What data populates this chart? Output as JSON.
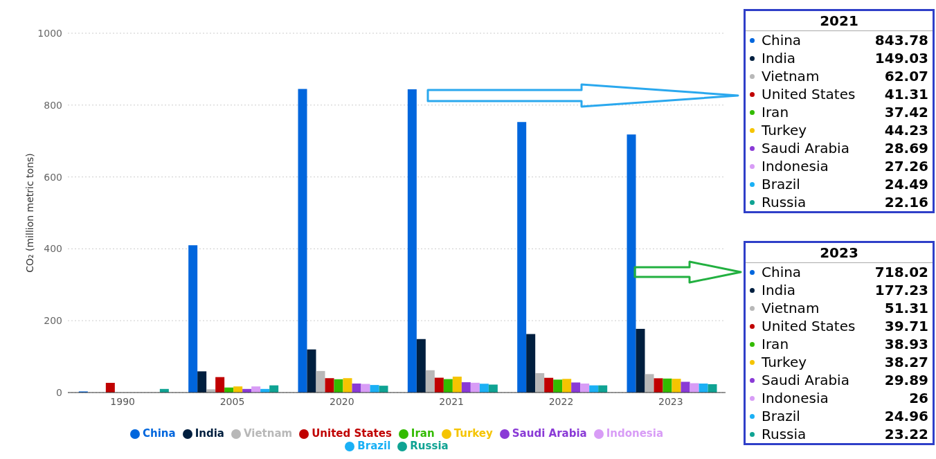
{
  "chart_data": {
    "type": "bar",
    "ylabel": "CO₂ (million metric tons)",
    "categories": [
      "1990",
      "2005",
      "2020",
      "2021",
      "2022",
      "2023"
    ],
    "ylim": [
      0,
      1000
    ],
    "yticks": [
      0,
      200,
      400,
      600,
      800,
      1000
    ],
    "grid": "y",
    "legend": "bottom",
    "series": [
      {
        "name": "China",
        "color": "#0066dd",
        "values": [
          3,
          410,
          845,
          843.78,
          753,
          718.02
        ]
      },
      {
        "name": "India",
        "color": "#001f3f",
        "values": [
          null,
          59,
          120,
          149.03,
          163,
          177.23
        ]
      },
      {
        "name": "Vietnam",
        "color": "#b8b8b8",
        "values": [
          0,
          9,
          60,
          62.07,
          54,
          51.31
        ]
      },
      {
        "name": "United States",
        "color": "#c00000",
        "values": [
          27,
          43,
          40,
          41.31,
          41,
          39.71
        ]
      },
      {
        "name": "Iran",
        "color": "#33bb00",
        "values": [
          0,
          14,
          37,
          37.42,
          36,
          38.93
        ]
      },
      {
        "name": "Turkey",
        "color": "#f5c400",
        "values": [
          0,
          17,
          40,
          44.23,
          38,
          38.27
        ]
      },
      {
        "name": "Saudi Arabia",
        "color": "#8a3ad6",
        "values": [
          0,
          10,
          25,
          28.69,
          28,
          29.89
        ]
      },
      {
        "name": "Indonesia",
        "color": "#d89cf6",
        "values": [
          0,
          17,
          24,
          27.26,
          25,
          26
        ]
      },
      {
        "name": "Brazil",
        "color": "#1ab0f5",
        "values": [
          0,
          10,
          21,
          24.49,
          20,
          24.96
        ]
      },
      {
        "name": "Russia",
        "color": "#0fa393",
        "values": [
          10,
          20,
          19,
          22.16,
          20,
          23.22
        ]
      }
    ],
    "annotations": [
      "2021",
      "China 843.78",
      "India 149.03",
      "Vietnam 62.07",
      "United States 41.31",
      "Iran 37.42",
      "Turkey 44.23",
      "Saudi Arabia 28.69",
      "Indonesia 27.26",
      "Brazil 24.49",
      "Russia 22.16",
      "2023",
      "China 718.02",
      "India 177.23",
      "Vietnam 51.31",
      "United States 39.71",
      "Iran 38.93",
      "Turkey 38.27",
      "Saudi Arabia 29.89",
      "Indonesia 26",
      "Brazil 24.96",
      "Russia 23.22"
    ]
  }
}
